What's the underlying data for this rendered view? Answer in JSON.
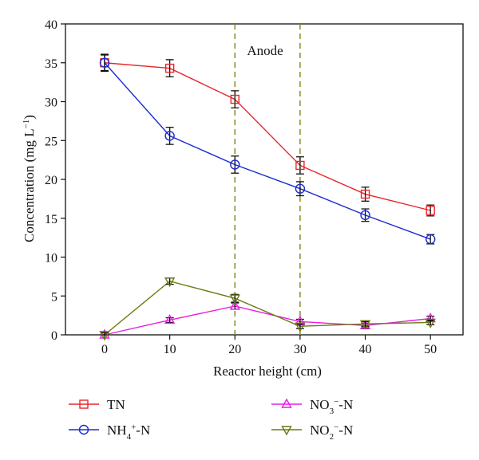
{
  "chart_data": {
    "type": "line",
    "xlabel": "Reactor height (cm)",
    "ylabel_main": "Concentration (mg L",
    "ylabel_sup": "−1",
    "ylabel_close": ")",
    "x_ticks": [
      0,
      10,
      20,
      30,
      40,
      50
    ],
    "y_ticks": [
      0,
      5,
      10,
      15,
      20,
      25,
      30,
      35,
      40
    ],
    "xlim": [
      -6,
      55
    ],
    "ylim": [
      0,
      40
    ],
    "grid": false,
    "annotation": "Anode",
    "anode_region": [
      20,
      30
    ],
    "legend_placement": "bottom",
    "series": [
      {
        "name": "TN",
        "color": "#e8262a",
        "marker": "square",
        "x": [
          0,
          10,
          20,
          30,
          40,
          50
        ],
        "y": [
          35.0,
          34.3,
          30.3,
          21.8,
          18.1,
          16.0
        ],
        "err": [
          1.0,
          1.1,
          1.1,
          1.1,
          0.9,
          0.7
        ]
      },
      {
        "name": "NH4+-N",
        "color": "#1b2bd0",
        "marker": "circle",
        "x": [
          0,
          10,
          20,
          30,
          40,
          50
        ],
        "y": [
          35.0,
          25.6,
          21.9,
          18.8,
          15.4,
          12.3
        ],
        "err": [
          1.1,
          1.1,
          1.1,
          0.9,
          0.8,
          0.6
        ]
      },
      {
        "name": "NO3−-N",
        "color": "#e81ee0",
        "marker": "triangle",
        "x": [
          0,
          10,
          20,
          30,
          40,
          50
        ],
        "y": [
          0.0,
          1.9,
          3.7,
          1.7,
          1.2,
          2.1
        ],
        "err": [
          0.3,
          0.3,
          0.4,
          0.3,
          0.3,
          0.3
        ]
      },
      {
        "name": "NO2−-N",
        "color": "#6b7a12",
        "marker": "triangle-down",
        "x": [
          0,
          10,
          20,
          30,
          40,
          50
        ],
        "y": [
          0.0,
          6.9,
          4.7,
          1.1,
          1.4,
          1.6
        ],
        "err": [
          0.3,
          0.4,
          0.5,
          0.3,
          0.3,
          0.3
        ]
      }
    ],
    "legend": [
      {
        "series": 0,
        "base": "TN",
        "sub": "",
        "sup": "",
        "tail": ""
      },
      {
        "series": 1,
        "base": "NH",
        "sub": "4",
        "sup": "+",
        "tail": "-N"
      },
      {
        "series": 2,
        "base": "NO",
        "sub": "3",
        "sup": "−",
        "tail": "-N"
      },
      {
        "series": 3,
        "base": "NO",
        "sub": "2",
        "sup": "−",
        "tail": "-N"
      }
    ]
  }
}
